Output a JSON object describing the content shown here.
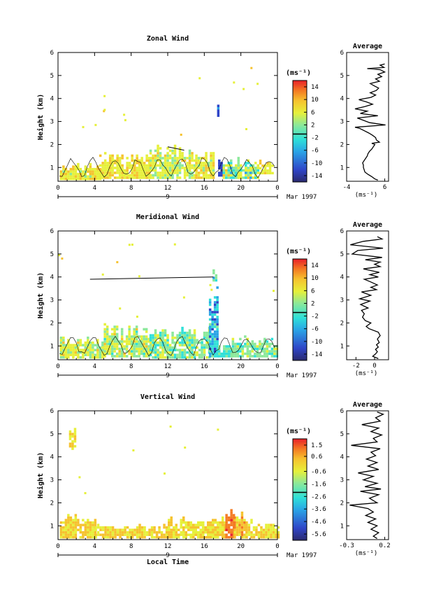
{
  "figure": {
    "month_label": "Mar 1997",
    "day_label": "9",
    "xlabel": "Local Time",
    "ylabel": "Height (km)",
    "cb_unit": "(ms⁻¹)",
    "avg_unit": "(ms⁻¹)",
    "avg_title": "Average",
    "time_ticks": [
      "0",
      "4",
      "8",
      "12",
      "16",
      "20",
      "0"
    ],
    "height_ticks": [
      "1",
      "2",
      "3",
      "4",
      "5",
      "6"
    ]
  },
  "chart_data": [
    {
      "type": "heatmap",
      "title": "Zonal Wind",
      "xlabel": "Local Time",
      "ylabel": "Height (km)",
      "xlim": [
        0,
        24
      ],
      "ylim": [
        0.4,
        6
      ],
      "colorbar": {
        "ticks": [
          "14",
          "10",
          "6",
          "2",
          "-2",
          "-6",
          "-10",
          "-14"
        ],
        "min": -16,
        "max": 16
      },
      "profile": {
        "title": "Average",
        "xlim": [
          -4,
          7
        ],
        "xticks": [
          "-4",
          "6"
        ],
        "xtick_values": [
          -4,
          6
        ],
        "points": [
          [
            4.2,
            0.45
          ],
          [
            3.4,
            0.5
          ],
          [
            2.6,
            0.6
          ],
          [
            1.6,
            0.7
          ],
          [
            0.8,
            0.8
          ],
          [
            0.6,
            0.9
          ],
          [
            0.4,
            1.0
          ],
          [
            0.4,
            1.1
          ],
          [
            0.2,
            1.2
          ],
          [
            0.6,
            1.3
          ],
          [
            1.0,
            1.4
          ],
          [
            1.4,
            1.5
          ],
          [
            1.6,
            1.6
          ],
          [
            2.0,
            1.7
          ],
          [
            2.6,
            1.8
          ],
          [
            3.0,
            1.9
          ],
          [
            3.4,
            2.0
          ],
          [
            2.6,
            2.05
          ],
          [
            4.6,
            2.1
          ],
          [
            3.8,
            2.2
          ],
          [
            3.6,
            2.3
          ],
          [
            2.8,
            2.4
          ],
          [
            1.8,
            2.5
          ],
          [
            0.6,
            2.6
          ],
          [
            -0.6,
            2.7
          ],
          [
            -1.8,
            2.75
          ],
          [
            6.2,
            2.85
          ],
          [
            2.0,
            2.95
          ],
          [
            0.4,
            3.05
          ],
          [
            -1.2,
            3.15
          ],
          [
            4.2,
            3.25
          ],
          [
            -0.4,
            3.35
          ],
          [
            1.4,
            3.45
          ],
          [
            -1.8,
            3.55
          ],
          [
            0.8,
            3.65
          ],
          [
            2.8,
            3.75
          ],
          [
            1.2,
            3.85
          ],
          [
            -0.8,
            3.95
          ],
          [
            2.4,
            4.05
          ],
          [
            3.6,
            4.15
          ],
          [
            2.2,
            4.25
          ],
          [
            3.8,
            4.35
          ],
          [
            4.4,
            4.45
          ],
          [
            3.2,
            4.55
          ],
          [
            2.2,
            4.65
          ],
          [
            4.6,
            4.75
          ],
          [
            3.6,
            4.85
          ],
          [
            5.2,
            4.95
          ],
          [
            4.2,
            5.05
          ],
          [
            6.0,
            5.15
          ],
          [
            4.8,
            5.25
          ],
          [
            1.4,
            5.3
          ],
          [
            5.8,
            5.35
          ],
          [
            4.8,
            5.45
          ],
          [
            6.0,
            5.5
          ]
        ]
      }
    },
    {
      "type": "heatmap",
      "title": "Meridional Wind",
      "xlabel": "Local Time",
      "ylabel": "Height (km)",
      "xlim": [
        0,
        24
      ],
      "ylim": [
        0.4,
        6
      ],
      "colorbar": {
        "ticks": [
          "14",
          "10",
          "6",
          "2",
          "-2",
          "-6",
          "-10",
          "-14"
        ],
        "min": -16,
        "max": 16
      },
      "profile": {
        "title": "Average",
        "xlim": [
          -3,
          1.5
        ],
        "xticks": [
          "-2",
          "0"
        ],
        "xtick_values": [
          -2,
          0
        ],
        "points": [
          [
            0.4,
            0.45
          ],
          [
            -0.2,
            0.55
          ],
          [
            0.1,
            0.65
          ],
          [
            0.3,
            0.75
          ],
          [
            0.1,
            0.85
          ],
          [
            0.4,
            0.95
          ],
          [
            0.2,
            1.05
          ],
          [
            0.5,
            1.15
          ],
          [
            0.3,
            1.3
          ],
          [
            0.6,
            1.45
          ],
          [
            0.4,
            1.6
          ],
          [
            -0.6,
            1.75
          ],
          [
            -0.9,
            1.85
          ],
          [
            -0.4,
            2.0
          ],
          [
            -1.0,
            2.1
          ],
          [
            -1.3,
            2.25
          ],
          [
            -1.1,
            2.4
          ],
          [
            -1.4,
            2.55
          ],
          [
            -0.7,
            2.65
          ],
          [
            -1.5,
            2.8
          ],
          [
            -0.5,
            2.95
          ],
          [
            -1.6,
            3.05
          ],
          [
            -0.4,
            3.2
          ],
          [
            -1.4,
            3.35
          ],
          [
            0.2,
            3.45
          ],
          [
            -0.4,
            3.55
          ],
          [
            0.3,
            3.65
          ],
          [
            -0.5,
            3.8
          ],
          [
            -1.1,
            3.9
          ],
          [
            0.4,
            4.0
          ],
          [
            -0.5,
            4.1
          ],
          [
            0.5,
            4.2
          ],
          [
            -1.2,
            4.35
          ],
          [
            0.6,
            4.45
          ],
          [
            0.0,
            4.55
          ],
          [
            0.6,
            4.65
          ],
          [
            -1.0,
            4.75
          ],
          [
            0.8,
            4.85
          ],
          [
            -2.4,
            5.0
          ],
          [
            -1.8,
            5.15
          ],
          [
            0.9,
            5.25
          ],
          [
            -2.6,
            5.4
          ],
          [
            -1.2,
            5.55
          ],
          [
            0.8,
            5.65
          ],
          [
            0.3,
            5.75
          ]
        ]
      }
    },
    {
      "type": "heatmap",
      "title": "Vertical Wind",
      "xlabel": "Local Time",
      "ylabel": "Height (km)",
      "xlim": [
        0,
        24
      ],
      "ylim": [
        0.4,
        6
      ],
      "colorbar": {
        "ticks": [
          "1.5",
          "0.6",
          "-0.6",
          "-1.6",
          "-2.6",
          "-3.6",
          "-4.6",
          "-5.6"
        ],
        "min": -6.1,
        "max": 2.0
      },
      "profile": {
        "title": "Average",
        "xlim": [
          -0.3,
          0.25
        ],
        "xticks": [
          "-0.3",
          "0.2"
        ],
        "xtick_values": [
          -0.3,
          0.2
        ],
        "points": [
          [
            0.1,
            0.45
          ],
          [
            0.05,
            0.55
          ],
          [
            0.12,
            0.7
          ],
          [
            0.02,
            0.85
          ],
          [
            0.1,
            1.0
          ],
          [
            -0.02,
            1.15
          ],
          [
            0.08,
            1.3
          ],
          [
            -0.05,
            1.45
          ],
          [
            0.05,
            1.6
          ],
          [
            -0.02,
            1.75
          ],
          [
            -0.26,
            1.9
          ],
          [
            0.1,
            2.0
          ],
          [
            0.0,
            2.2
          ],
          [
            0.12,
            2.35
          ],
          [
            -0.12,
            2.5
          ],
          [
            0.15,
            2.6
          ],
          [
            -0.06,
            2.7
          ],
          [
            0.1,
            2.85
          ],
          [
            -0.08,
            3.0
          ],
          [
            0.05,
            3.15
          ],
          [
            -0.15,
            3.3
          ],
          [
            0.12,
            3.45
          ],
          [
            -0.02,
            3.6
          ],
          [
            0.1,
            3.75
          ],
          [
            -0.04,
            3.9
          ],
          [
            0.08,
            4.05
          ],
          [
            0.02,
            4.2
          ],
          [
            0.14,
            4.35
          ],
          [
            -0.24,
            4.5
          ],
          [
            0.1,
            4.65
          ],
          [
            0.05,
            4.8
          ],
          [
            0.16,
            4.95
          ],
          [
            0.02,
            5.1
          ],
          [
            0.12,
            5.25
          ],
          [
            -0.1,
            5.4
          ],
          [
            0.14,
            5.55
          ],
          [
            0.08,
            5.7
          ],
          [
            0.18,
            5.85
          ],
          [
            0.1,
            5.95
          ]
        ]
      }
    }
  ]
}
